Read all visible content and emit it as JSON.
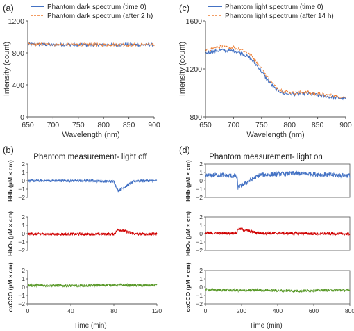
{
  "colors": {
    "blue": "#4472C4",
    "orange": "#ED7D31",
    "red": "#D00000",
    "green": "#5A9A2A",
    "axis": "#555555"
  },
  "chart_data": [
    {
      "id": "a",
      "type": "line",
      "panel_label": "(a)",
      "xlabel": "Wavelength (nm)",
      "ylabel": "Intensity (count)",
      "xlim": [
        650,
        900
      ],
      "ylim": [
        0,
        1200
      ],
      "xticks": [
        650,
        700,
        750,
        800,
        850,
        900
      ],
      "yticks": [
        0,
        400,
        800,
        1200
      ],
      "legend_position": "top",
      "series": [
        {
          "name": "Phantom dark spectrum (time 0)",
          "color": "blue",
          "style": "solid",
          "x": [
            650,
            675,
            700,
            725,
            750,
            775,
            800,
            825,
            850,
            875,
            900
          ],
          "y": [
            910,
            905,
            900,
            905,
            900,
            900,
            905,
            900,
            905,
            900,
            905
          ]
        },
        {
          "name": "Phantom dark spectrum (after 2 h)",
          "color": "orange",
          "style": "dashed",
          "x": [
            650,
            675,
            700,
            725,
            750,
            775,
            800,
            825,
            850,
            875,
            900
          ],
          "y": [
            905,
            910,
            905,
            900,
            905,
            905,
            900,
            905,
            900,
            905,
            900
          ]
        }
      ]
    },
    {
      "id": "c",
      "type": "line",
      "panel_label": "(c)",
      "xlabel": "Wavelength (nm)",
      "ylabel": "Intensity (count)",
      "xlim": [
        650,
        900
      ],
      "ylim": [
        800,
        1600
      ],
      "xticks": [
        650,
        700,
        750,
        800,
        850,
        900
      ],
      "yticks": [
        800,
        1200,
        1600
      ],
      "legend_position": "top",
      "series": [
        {
          "name": "Phantom light spectrum (time 0)",
          "color": "blue",
          "style": "solid",
          "x": [
            650,
            675,
            700,
            715,
            730,
            745,
            760,
            775,
            790,
            810,
            830,
            850,
            875,
            900
          ],
          "y": [
            1330,
            1355,
            1350,
            1330,
            1290,
            1210,
            1110,
            1030,
            995,
            990,
            995,
            980,
            965,
            950
          ]
        },
        {
          "name": "Phantom light spectrum (after 14 h)",
          "color": "orange",
          "style": "dashed",
          "x": [
            650,
            675,
            700,
            715,
            730,
            745,
            760,
            775,
            790,
            810,
            830,
            850,
            875,
            900
          ],
          "y": [
            1350,
            1385,
            1380,
            1360,
            1320,
            1240,
            1135,
            1050,
            1010,
            1000,
            1005,
            990,
            975,
            960
          ]
        }
      ]
    },
    {
      "id": "b",
      "type": "line",
      "panel_label": "(b)",
      "title": "Phantom measurement- light off",
      "xlabel": "Time (min)",
      "xlim": [
        0,
        120
      ],
      "xticks": [
        0,
        40,
        80,
        120
      ],
      "subplots": [
        {
          "ylabel": "HHb (μM × cm)",
          "ylim": [
            -2,
            2
          ],
          "yticks": [
            -2,
            -1,
            0,
            1,
            2
          ],
          "color": "blue",
          "x": [
            0,
            20,
            40,
            60,
            80,
            84,
            100,
            120
          ],
          "y": [
            0,
            0,
            0,
            0,
            -0.1,
            -1.2,
            0,
            0
          ]
        },
        {
          "ylabel": "HbO₂ (μM × cm)",
          "ylim": [
            -2,
            2
          ],
          "yticks": [
            -2,
            -1,
            0,
            1,
            2
          ],
          "color": "red",
          "x": [
            0,
            20,
            40,
            60,
            80,
            84,
            100,
            120
          ],
          "y": [
            -0.05,
            -0.05,
            -0.05,
            -0.05,
            -0.05,
            0.5,
            -0.05,
            -0.05
          ]
        },
        {
          "ylabel": "oxCCO (μM × cm)",
          "ylim": [
            -2,
            2
          ],
          "yticks": [
            -2,
            -1,
            0,
            1,
            2
          ],
          "color": "green",
          "x": [
            0,
            20,
            40,
            60,
            80,
            100,
            120
          ],
          "y": [
            0.2,
            0.2,
            0.15,
            0.2,
            0.25,
            0.2,
            0.2
          ]
        }
      ]
    },
    {
      "id": "d",
      "type": "line",
      "panel_label": "(d)",
      "title": "Phantom measurement- light on",
      "xlabel": "Time (min)",
      "xlim": [
        0,
        800
      ],
      "xticks": [
        0,
        200,
        400,
        600,
        800
      ],
      "subplots": [
        {
          "ylabel": "HHb (μM × cm)",
          "ylim": [
            -2,
            2
          ],
          "yticks": [
            -2,
            -1,
            0,
            1,
            2
          ],
          "color": "blue",
          "x": [
            0,
            50,
            100,
            175,
            180,
            300,
            400,
            500,
            600,
            700,
            840
          ],
          "y": [
            0.6,
            0.7,
            0.7,
            0.5,
            -0.8,
            0.7,
            0.8,
            0.9,
            0.8,
            0.7,
            0.6
          ]
        },
        {
          "ylabel": "HbO₂ (μM × cm)",
          "ylim": [
            -2,
            2
          ],
          "yticks": [
            -2,
            -1,
            0,
            1,
            2
          ],
          "color": "red",
          "x": [
            0,
            100,
            175,
            180,
            300,
            400,
            500,
            600,
            700,
            840
          ],
          "y": [
            0.05,
            0.05,
            0.1,
            0.6,
            0.05,
            0.05,
            0.05,
            0.0,
            0.0,
            -0.05
          ]
        },
        {
          "ylabel": "oxCCO (μM × cm)",
          "ylim": [
            -2,
            2
          ],
          "yticks": [
            -2,
            -1,
            0,
            1,
            2
          ],
          "color": "green",
          "x": [
            0,
            100,
            200,
            300,
            400,
            500,
            600,
            700,
            840
          ],
          "y": [
            -0.3,
            -0.35,
            -0.4,
            -0.35,
            -0.4,
            -0.45,
            -0.4,
            -0.35,
            -0.4
          ]
        }
      ]
    }
  ]
}
